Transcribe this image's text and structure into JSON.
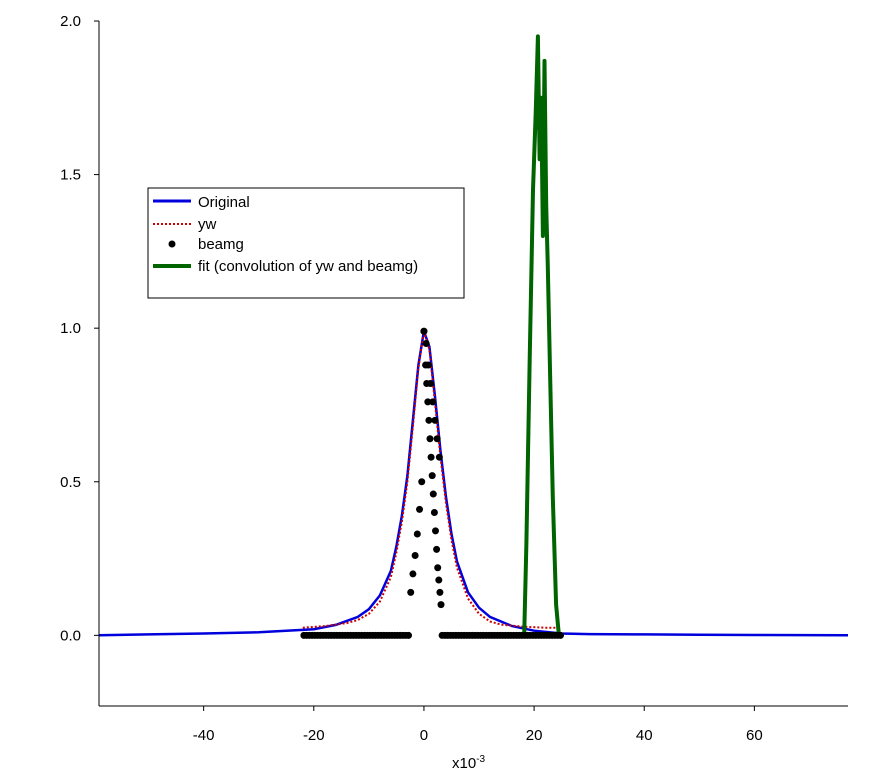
{
  "chart_data": {
    "type": "line",
    "title": "",
    "xlabel_base": "x10",
    "xlabel_exp": "-3",
    "ylabel": "",
    "xlim": [
      -59,
      77
    ],
    "ylim": [
      -0.23,
      2.0
    ],
    "x_ticks": [
      -40,
      -20,
      0,
      20,
      40,
      60
    ],
    "y_ticks": [
      0.0,
      0.5,
      1.0,
      1.5,
      2.0
    ],
    "x_tick_labels": [
      "-40",
      "-20",
      "0",
      "20",
      "40",
      "60"
    ],
    "y_tick_labels": [
      "0.0",
      "0.5",
      "1.0",
      "1.5",
      "2.0"
    ],
    "grid": false,
    "legend_position": "upper-left",
    "colors": {
      "original": "#0000dd",
      "yw": "#cc0000",
      "beamg": "#000000",
      "fit": "#006400"
    },
    "series": [
      {
        "name": "Original",
        "style": "solid-line",
        "x": [
          -59,
          -50,
          -40,
          -30,
          -25,
          -20,
          -16,
          -12,
          -10,
          -8,
          -6,
          -5,
          -4,
          -3,
          -2,
          -1,
          0,
          1,
          2,
          3,
          4,
          5,
          6,
          8,
          10,
          12,
          16,
          20,
          25,
          30,
          40,
          50,
          60,
          77
        ],
        "y": [
          0.0,
          0.003,
          0.006,
          0.01,
          0.015,
          0.02,
          0.034,
          0.06,
          0.085,
          0.13,
          0.21,
          0.29,
          0.39,
          0.52,
          0.7,
          0.88,
          0.99,
          0.94,
          0.78,
          0.6,
          0.45,
          0.33,
          0.24,
          0.14,
          0.09,
          0.06,
          0.03,
          0.015,
          0.006,
          0.004,
          0.003,
          0.002,
          0.001,
          0.0
        ]
      },
      {
        "name": "yw",
        "style": "dotted-line",
        "x": [
          -22,
          -18,
          -14,
          -12,
          -10,
          -8,
          -6,
          -5,
          -4,
          -3,
          -2,
          -1,
          0,
          1,
          2,
          3,
          4,
          5,
          6,
          8,
          10,
          12,
          14,
          18,
          22,
          24.5
        ],
        "y": [
          0.025,
          0.03,
          0.04,
          0.05,
          0.07,
          0.11,
          0.19,
          0.27,
          0.37,
          0.5,
          0.68,
          0.87,
          0.99,
          0.93,
          0.76,
          0.58,
          0.43,
          0.31,
          0.22,
          0.12,
          0.07,
          0.045,
          0.035,
          0.028,
          0.025,
          0.025
        ]
      },
      {
        "name": "beamg",
        "style": "markers",
        "x": [
          -21.8,
          -21.3,
          -20.8,
          -20.3,
          -19.8,
          -19.3,
          -18.8,
          -18.3,
          -17.8,
          -17.3,
          -16.8,
          -16.3,
          -15.8,
          -15.3,
          -14.8,
          -14.3,
          -13.8,
          -13.3,
          -12.8,
          -12.3,
          -11.8,
          -11.3,
          -10.8,
          -10.3,
          -9.8,
          -9.3,
          -8.8,
          -8.3,
          -7.8,
          -7.3,
          -6.8,
          -6.3,
          -5.8,
          -5.3,
          -4.8,
          -4.3,
          -3.8,
          -3.3,
          -2.8,
          -2.4,
          -2.0,
          -1.6,
          -1.2,
          -0.8,
          -0.4,
          0.0,
          0.4,
          0.8,
          1.2,
          1.6,
          2.0,
          2.4,
          2.8,
          3.3,
          3.8,
          4.3,
          4.8,
          5.3,
          5.8,
          6.3,
          6.8,
          7.3,
          7.8,
          8.3,
          8.8,
          9.3,
          9.8,
          10.3,
          10.8,
          11.3,
          11.8,
          12.3,
          12.8,
          13.3,
          13.8,
          14.3,
          14.8,
          15.3,
          15.8,
          16.3,
          16.8,
          17.3,
          17.8,
          18.3,
          18.8,
          19.3,
          19.8,
          20.3,
          20.8,
          21.3,
          21.8,
          22.3,
          22.8,
          23.3,
          23.8,
          24.3,
          24.8,
          0.0,
          0.3,
          0.5,
          0.7,
          0.9,
          1.1,
          1.3,
          1.5,
          1.7,
          1.9,
          2.1,
          2.3,
          2.5,
          2.7,
          2.9,
          3.1
        ],
        "y": [
          0,
          0,
          0,
          0,
          0,
          0,
          0,
          0,
          0,
          0,
          0,
          0,
          0,
          0,
          0,
          0,
          0,
          0,
          0,
          0,
          0,
          0,
          0,
          0,
          0,
          0,
          0,
          0,
          0,
          0,
          0,
          0,
          0,
          0,
          0,
          0,
          0,
          0,
          0.0,
          0.14,
          0.2,
          0.26,
          0.33,
          0.41,
          0.5,
          0.99,
          0.95,
          0.88,
          0.82,
          0.76,
          0.7,
          0.64,
          0.58,
          0,
          0,
          0,
          0,
          0,
          0,
          0,
          0,
          0,
          0,
          0,
          0,
          0,
          0,
          0,
          0,
          0,
          0,
          0,
          0,
          0,
          0,
          0,
          0,
          0,
          0,
          0,
          0,
          0,
          0,
          0,
          0,
          0,
          0,
          0,
          0,
          0,
          0,
          0,
          0,
          0,
          0,
          0,
          0,
          0.99,
          0.88,
          0.82,
          0.76,
          0.7,
          0.64,
          0.58,
          0.52,
          0.46,
          0.4,
          0.34,
          0.28,
          0.22,
          0.18,
          0.14,
          0.1
        ]
      },
      {
        "name": "fit (convolution of yw and beamg)",
        "style": "thick-line",
        "x": [
          18.2,
          18.6,
          19.2,
          19.8,
          20.3,
          20.7,
          21.0,
          21.3,
          21.6,
          21.9,
          22.2,
          22.5,
          22.9,
          23.4,
          24.0,
          24.5
        ],
        "y": [
          0.0,
          0.3,
          0.9,
          1.45,
          1.7,
          1.95,
          1.55,
          1.75,
          1.3,
          1.87,
          1.4,
          1.2,
          0.85,
          0.45,
          0.1,
          0.0
        ]
      }
    ]
  }
}
